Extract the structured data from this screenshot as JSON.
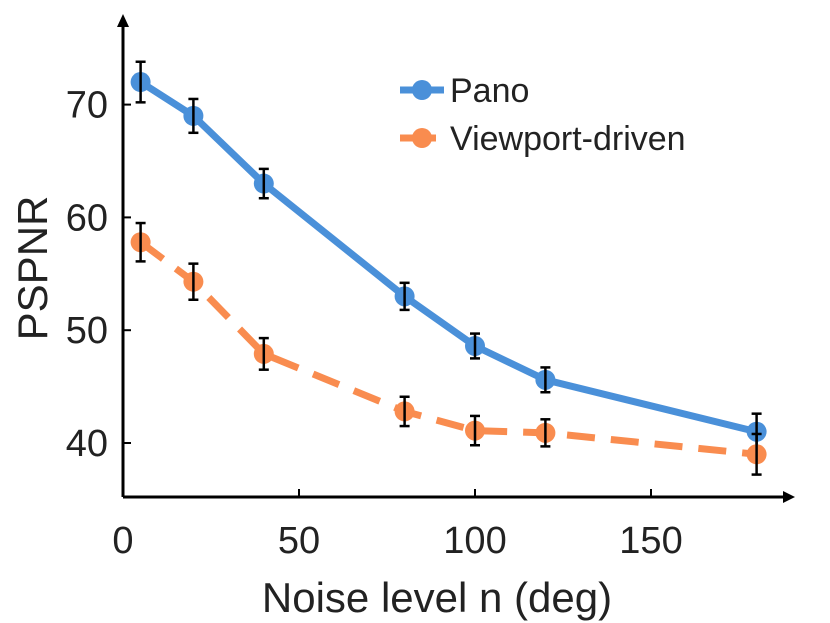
{
  "chart_data": {
    "type": "line",
    "title": "",
    "xlabel": "Noise level n (deg)",
    "ylabel": "PSPNR",
    "xlim": [
      0,
      190
    ],
    "ylim": [
      35,
      76
    ],
    "xticks": [
      0,
      50,
      100,
      150
    ],
    "yticks": [
      40,
      50,
      60,
      70
    ],
    "legend_position": "top-right",
    "x": [
      5,
      20,
      40,
      80,
      100,
      120,
      180
    ],
    "series": [
      {
        "name": "Pano",
        "color": "#4a90d9",
        "line_style": "solid",
        "values": [
          72.0,
          69.0,
          63.0,
          53.0,
          48.6,
          45.6,
          41.0
        ],
        "errors": [
          1.8,
          1.5,
          1.3,
          1.2,
          1.1,
          1.1,
          1.6
        ]
      },
      {
        "name": "Viewport-driven",
        "color": "#f98c4f",
        "line_style": "dashed",
        "values": [
          57.8,
          54.3,
          47.9,
          42.8,
          41.1,
          40.9,
          39.0
        ],
        "errors": [
          1.7,
          1.6,
          1.4,
          1.3,
          1.3,
          1.2,
          1.8
        ]
      }
    ]
  }
}
